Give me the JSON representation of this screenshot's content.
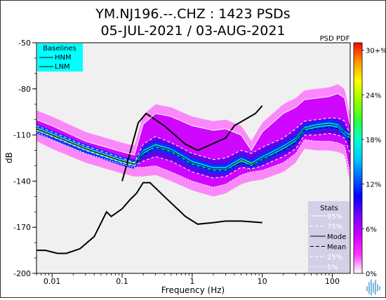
{
  "chart_data": {
    "type": "heatmap",
    "title": [
      "YM.NJ196.--.CHZ : 1423 PSDs",
      "05-JUL-2021 / 03-AUG-2021"
    ],
    "corner_label": "PSD PDF",
    "xlabel": "Frequency (Hz)",
    "ylabel": "dB",
    "x_scale": "log",
    "xlim": [
      0.006,
      180
    ],
    "ylim": [
      -200,
      -50
    ],
    "x_ticks": [
      {
        "value": 0.01,
        "label": "0.01"
      },
      {
        "value": 0.1,
        "label": "0.1"
      },
      {
        "value": 1,
        "label": "1"
      },
      {
        "value": 10,
        "label": "10"
      },
      {
        "value": 100,
        "label": "100"
      }
    ],
    "y_ticks": [
      {
        "value": -50,
        "label": "-50"
      },
      {
        "value": -80,
        "label": "-80"
      },
      {
        "value": -110,
        "label": "-110"
      },
      {
        "value": -140,
        "label": "-140"
      },
      {
        "value": -170,
        "label": "-170"
      },
      {
        "value": -200,
        "label": "-200"
      }
    ],
    "colorbar": {
      "colors": [
        "#ffffff",
        "#ff33ff",
        "#cc00ff",
        "#7a00ff",
        "#0000ff",
        "#0066ff",
        "#00ccff",
        "#00ffcc",
        "#33ff33",
        "#99ff00",
        "#ffff00",
        "#ff9900",
        "#ff0000"
      ],
      "ticks": [
        {
          "value": 0,
          "label": "0%"
        },
        {
          "value": 6,
          "label": "6%"
        },
        {
          "value": 12,
          "label": "12%"
        },
        {
          "value": 18,
          "label": "18%"
        },
        {
          "value": 24,
          "label": "24%"
        },
        {
          "value": 30,
          "label": "30+%"
        }
      ],
      "range": [
        0,
        31
      ]
    },
    "baselines_legend": {
      "title": "Baselines",
      "entries": [
        "HNM",
        "LNM"
      ],
      "background": "#00ffff"
    },
    "stats_legend": {
      "title": "Stats",
      "entries": [
        "95%",
        "75%",
        "Mode",
        "Mean",
        "25%",
        "5%"
      ],
      "background": "#d4cfe6"
    },
    "nhnm": {
      "name": "HNM",
      "x": [
        0.1,
        0.17,
        0.22,
        0.4,
        0.8,
        1.2,
        3,
        4,
        8,
        10
      ],
      "y": [
        -140,
        -102,
        -96,
        -104,
        -116,
        -120,
        -112,
        -104,
        -96,
        -91
      ]
    },
    "nlnm": {
      "name": "LNM",
      "x": [
        0.006,
        0.008,
        0.012,
        0.016,
        0.025,
        0.04,
        0.06,
        0.07,
        0.1,
        0.13,
        0.16,
        0.2,
        0.25,
        0.4,
        0.8,
        1.2,
        2,
        3,
        5,
        10
      ],
      "y": [
        -185,
        -185,
        -187,
        -187,
        -184,
        -176,
        -160,
        -163,
        -158,
        -152,
        -148,
        -141,
        -141,
        -150,
        -163,
        -168,
        -167,
        -166,
        -166,
        -167
      ]
    },
    "series": [
      {
        "name": "95%",
        "x": [
          0.006,
          0.01,
          0.03,
          0.1,
          0.15,
          0.2,
          0.3,
          0.5,
          1,
          2,
          3,
          5,
          7,
          10,
          20,
          30,
          40,
          60,
          90,
          120,
          150,
          180
        ],
        "y": [
          -100,
          -104,
          -114,
          -121,
          -123,
          -103,
          -96,
          -98,
          -104,
          -107,
          -106,
          -110,
          -120,
          -108,
          -96,
          -92,
          -87,
          -86,
          -85,
          -83,
          -86,
          -104
        ]
      },
      {
        "name": "75%",
        "x": [
          0.006,
          0.01,
          0.03,
          0.1,
          0.15,
          0.2,
          0.3,
          0.5,
          1,
          2,
          3,
          5,
          7,
          10,
          20,
          30,
          40,
          60,
          90,
          120,
          150,
          180
        ],
        "y": [
          -104,
          -108,
          -117,
          -125,
          -128,
          -116,
          -111,
          -115,
          -122,
          -126,
          -125,
          -120,
          -122,
          -118,
          -112,
          -106,
          -101,
          -100,
          -99,
          -99,
          -101,
          -110
        ]
      },
      {
        "name": "Mode",
        "x": [
          0.006,
          0.01,
          0.03,
          0.1,
          0.15,
          0.2,
          0.3,
          0.5,
          1,
          2,
          3,
          5,
          7,
          10,
          20,
          30,
          40,
          60,
          90,
          120,
          150,
          180
        ],
        "y": [
          -106,
          -110,
          -119,
          -127,
          -129,
          -121,
          -117,
          -120,
          -128,
          -132,
          -132,
          -126,
          -129,
          -125,
          -118,
          -113,
          -106,
          -104,
          -103,
          -104,
          -109,
          -111
        ]
      },
      {
        "name": "Mean",
        "x": [
          0.006,
          0.01,
          0.03,
          0.1,
          0.15,
          0.2,
          0.3,
          0.5,
          1,
          2,
          3,
          5,
          7,
          10,
          20,
          30,
          40,
          60,
          90,
          120,
          150,
          180
        ],
        "y": [
          -106,
          -110,
          -119,
          -127,
          -129,
          -123,
          -118,
          -121,
          -129,
          -133,
          -133,
          -128,
          -130,
          -126,
          -120,
          -115,
          -107,
          -106,
          -105,
          -106,
          -108,
          -114
        ]
      },
      {
        "name": "25%",
        "x": [
          0.006,
          0.01,
          0.03,
          0.1,
          0.15,
          0.2,
          0.3,
          0.5,
          1,
          2,
          3,
          5,
          7,
          10,
          20,
          30,
          40,
          60,
          90,
          120,
          150,
          180
        ],
        "y": [
          -107,
          -111,
          -120,
          -128,
          -130,
          -127,
          -124,
          -127,
          -134,
          -138,
          -137,
          -131,
          -132,
          -130,
          -124,
          -119,
          -110,
          -110,
          -109,
          -110,
          -112,
          -122
        ]
      },
      {
        "name": "5%",
        "x": [
          0.006,
          0.01,
          0.03,
          0.1,
          0.15,
          0.2,
          0.3,
          0.5,
          1,
          2,
          3,
          5,
          7,
          10,
          20,
          30,
          40,
          60,
          90,
          120,
          150,
          180
        ],
        "y": [
          -108,
          -113,
          -122,
          -129,
          -131,
          -131,
          -130,
          -134,
          -140,
          -144,
          -142,
          -136,
          -134,
          -133,
          -128,
          -122,
          -113,
          -114,
          -114,
          -115,
          -117,
          -135
        ]
      }
    ]
  }
}
